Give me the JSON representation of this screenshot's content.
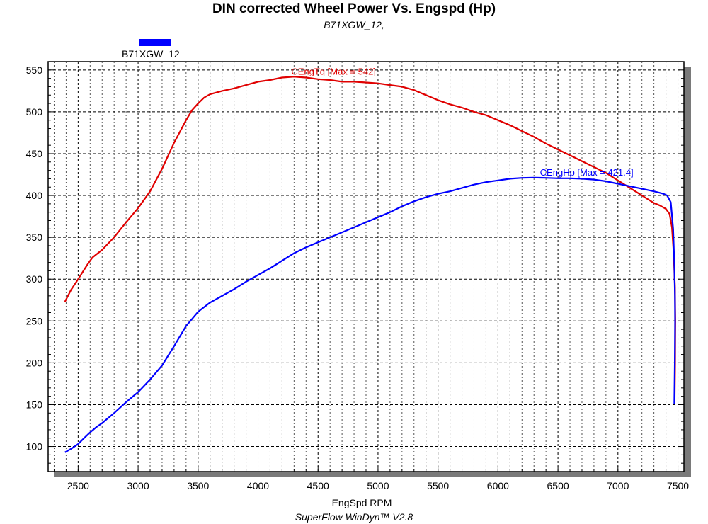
{
  "chart_data": {
    "type": "line",
    "title": "DIN corrected Wheel Power Vs. Engspd (Hp)",
    "subtitle": "B71XGW_12,",
    "xlabel": "EngSpd  RPM",
    "ylabel": "",
    "footer": "SuperFlow WinDyn™ V2.8",
    "xlim": [
      2250,
      7550
    ],
    "ylim": [
      70,
      560
    ],
    "x_ticks": [
      2500,
      3000,
      3500,
      4000,
      4500,
      5000,
      5500,
      6000,
      6500,
      7000,
      7500
    ],
    "y_ticks": [
      100,
      150,
      200,
      250,
      300,
      350,
      400,
      450,
      500,
      550
    ],
    "grid": true,
    "legend": {
      "position": "top-left",
      "entries": [
        {
          "name": "B71XGW_12",
          "color": "#0000ff"
        }
      ]
    },
    "series": [
      {
        "name": "CEngTq",
        "color": "#e00000",
        "label": "CEngTq [Max = 542]",
        "label_at": [
          4300,
          542
        ],
        "points": [
          [
            2390,
            273
          ],
          [
            2440,
            287
          ],
          [
            2500,
            300
          ],
          [
            2580,
            318
          ],
          [
            2620,
            326
          ],
          [
            2700,
            335
          ],
          [
            2800,
            350
          ],
          [
            2900,
            368
          ],
          [
            3000,
            385
          ],
          [
            3100,
            405
          ],
          [
            3200,
            432
          ],
          [
            3300,
            463
          ],
          [
            3400,
            490
          ],
          [
            3450,
            502
          ],
          [
            3500,
            510
          ],
          [
            3550,
            517
          ],
          [
            3600,
            521
          ],
          [
            3700,
            525
          ],
          [
            3800,
            528
          ],
          [
            3900,
            532
          ],
          [
            4000,
            536
          ],
          [
            4100,
            538
          ],
          [
            4200,
            541
          ],
          [
            4300,
            542
          ],
          [
            4400,
            541
          ],
          [
            4500,
            539
          ],
          [
            4600,
            538
          ],
          [
            4700,
            536
          ],
          [
            4800,
            536
          ],
          [
            4900,
            535
          ],
          [
            5000,
            534
          ],
          [
            5100,
            532
          ],
          [
            5200,
            530
          ],
          [
            5300,
            526
          ],
          [
            5400,
            520
          ],
          [
            5500,
            514
          ],
          [
            5600,
            509
          ],
          [
            5700,
            505
          ],
          [
            5800,
            500
          ],
          [
            5900,
            496
          ],
          [
            6000,
            490
          ],
          [
            6100,
            484
          ],
          [
            6200,
            477
          ],
          [
            6300,
            470
          ],
          [
            6400,
            462
          ],
          [
            6500,
            455
          ],
          [
            6600,
            448
          ],
          [
            6700,
            441
          ],
          [
            6800,
            434
          ],
          [
            6900,
            427
          ],
          [
            7000,
            418
          ],
          [
            7100,
            409
          ],
          [
            7200,
            400
          ],
          [
            7300,
            391
          ],
          [
            7350,
            388
          ],
          [
            7400,
            384
          ],
          [
            7430,
            378
          ],
          [
            7450,
            362
          ],
          [
            7465,
            330
          ],
          [
            7475,
            290
          ],
          [
            7478,
            250
          ],
          [
            7476,
            200
          ],
          [
            7472,
            151
          ]
        ]
      },
      {
        "name": "CEngHp",
        "color": "#0000ff",
        "label": "CEngHp [Max = 421.4]",
        "label_at": [
          6350,
          421.4
        ],
        "points": [
          [
            2390,
            93
          ],
          [
            2450,
            98
          ],
          [
            2500,
            103
          ],
          [
            2550,
            110
          ],
          [
            2600,
            117
          ],
          [
            2650,
            123
          ],
          [
            2700,
            128
          ],
          [
            2800,
            140
          ],
          [
            2900,
            153
          ],
          [
            3000,
            165
          ],
          [
            3100,
            180
          ],
          [
            3200,
            197
          ],
          [
            3300,
            220
          ],
          [
            3400,
            244
          ],
          [
            3500,
            261
          ],
          [
            3600,
            272
          ],
          [
            3700,
            280
          ],
          [
            3800,
            288
          ],
          [
            3900,
            297
          ],
          [
            4000,
            305
          ],
          [
            4100,
            313
          ],
          [
            4200,
            322
          ],
          [
            4300,
            331
          ],
          [
            4400,
            338
          ],
          [
            4500,
            344
          ],
          [
            4600,
            350
          ],
          [
            4700,
            356
          ],
          [
            4800,
            362
          ],
          [
            4900,
            368
          ],
          [
            5000,
            374
          ],
          [
            5100,
            380
          ],
          [
            5200,
            387
          ],
          [
            5300,
            393
          ],
          [
            5400,
            398
          ],
          [
            5500,
            402
          ],
          [
            5600,
            405
          ],
          [
            5700,
            409
          ],
          [
            5800,
            413
          ],
          [
            5900,
            416
          ],
          [
            6000,
            418
          ],
          [
            6100,
            420
          ],
          [
            6200,
            421
          ],
          [
            6300,
            421.4
          ],
          [
            6400,
            421
          ],
          [
            6500,
            420.5
          ],
          [
            6600,
            420.5
          ],
          [
            6700,
            420
          ],
          [
            6800,
            419
          ],
          [
            6900,
            417
          ],
          [
            7000,
            414
          ],
          [
            7100,
            411
          ],
          [
            7200,
            408
          ],
          [
            7300,
            405
          ],
          [
            7380,
            402
          ],
          [
            7410,
            400
          ],
          [
            7440,
            392
          ],
          [
            7460,
            360
          ],
          [
            7470,
            320
          ],
          [
            7475,
            280
          ],
          [
            7476,
            250
          ],
          [
            7474,
            200
          ],
          [
            7470,
            151
          ]
        ]
      }
    ]
  }
}
